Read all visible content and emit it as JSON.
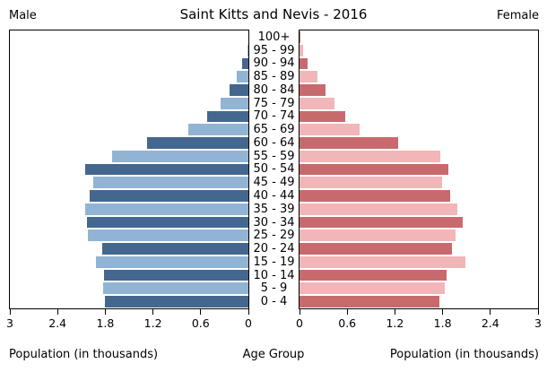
{
  "header": {
    "male_label": "Male",
    "title": "Saint Kitts and Nevis - 2016",
    "female_label": "Female"
  },
  "footer": {
    "left_axis_label": "Population (in thousands)",
    "center_axis_label": "Age Group",
    "right_axis_label": "Population (in thousands)"
  },
  "chart_data": {
    "type": "bar",
    "subtype": "population-pyramid",
    "title": "Saint Kitts and Nevis - 2016",
    "categories_top_to_bottom": [
      "100+",
      "95 - 99",
      "90 - 94",
      "85 - 89",
      "80 - 84",
      "75 - 79",
      "70 - 74",
      "65 - 69",
      "60 - 64",
      "55 - 59",
      "50 - 54",
      "45 - 49",
      "40 - 44",
      "35 - 39",
      "30 - 34",
      "25 - 29",
      "20 - 24",
      "15 - 19",
      "10 - 14",
      "5 - 9",
      "0 - 4"
    ],
    "series": [
      {
        "name": "Male",
        "side": "left",
        "axis_reversed": true,
        "values_top_to_bottom": [
          0,
          0.01,
          0.08,
          0.15,
          0.24,
          0.35,
          0.52,
          0.76,
          1.27,
          1.71,
          2.05,
          1.95,
          2.0,
          2.05,
          2.03,
          2.02,
          1.84,
          1.92,
          1.82,
          1.83,
          1.8
        ]
      },
      {
        "name": "Female",
        "side": "right",
        "axis_reversed": false,
        "values_top_to_bottom": [
          0.01,
          0.05,
          0.1,
          0.22,
          0.33,
          0.44,
          0.58,
          0.76,
          1.24,
          1.77,
          1.87,
          1.79,
          1.89,
          1.98,
          2.05,
          1.96,
          1.92,
          2.09,
          1.85,
          1.83,
          1.76
        ]
      }
    ],
    "xlabel": "Population (in thousands)",
    "center_label": "Age Group",
    "xlim": [
      0,
      3
    ],
    "xticks": [
      0,
      0.6,
      1.2,
      1.8,
      2.4,
      3
    ],
    "xtick_labels": [
      "0",
      "0.6",
      "1.2",
      "1.8",
      "2.4",
      "3"
    ],
    "legend_position": "none",
    "grid": false,
    "shading_rule": "rows alternate: even index from top = dark shade, odd index = light shade",
    "colors": {
      "male_dark": "#44678f",
      "male_light": "#92b4d4",
      "female_dark": "#c86a6d",
      "female_light": "#f2b6b8",
      "axis": "#000000",
      "background": "#ffffff"
    }
  }
}
